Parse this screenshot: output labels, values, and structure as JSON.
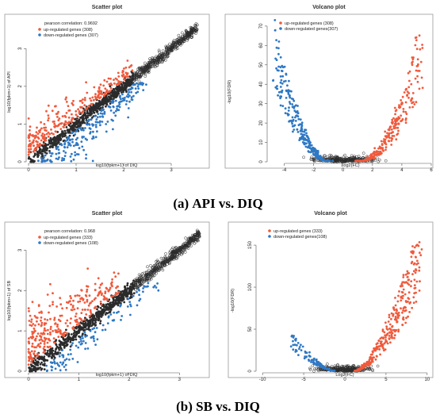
{
  "captions": {
    "a_letter": "(a)",
    "a_text": "API vs. DIQ",
    "b_letter": "(b)",
    "b_text": "SB vs. DIQ"
  },
  "colors": {
    "up": "#f05a3c",
    "down": "#2f78c4",
    "neutral": "#2b2b2b"
  },
  "chart_data": [
    {
      "type": "scatter",
      "panel": "a-left",
      "title": "Scatter plot",
      "xlabel": "log10(fpkm+1) of DIQ",
      "ylabel": "log10(fpkm+1) of API",
      "xlim": [
        0,
        3.7
      ],
      "ylim": [
        0,
        3.7
      ],
      "xticks": [
        0,
        1,
        2,
        3
      ],
      "yticks": [
        0,
        1,
        2,
        3
      ],
      "annotation": "pearson correlation: 0.9692",
      "series": [
        {
          "name": "up-regulated genes (308)",
          "color": "#f05a3c",
          "count": 308
        },
        {
          "name": "down-regulated genes (307)",
          "color": "#2f78c4",
          "count": 307
        },
        {
          "color": "#2b2b2b"
        }
      ]
    },
    {
      "type": "scatter",
      "panel": "a-right",
      "title": "Volcano plot",
      "xlabel": "Log2(FC)",
      "ylabel": "-log10(FDR)",
      "xlim": [
        -5,
        6
      ],
      "ylim": [
        0,
        72
      ],
      "xticks": [
        -4,
        -2,
        0,
        2,
        4,
        6
      ],
      "yticks": [
        0,
        10,
        20,
        30,
        40,
        50,
        60,
        70
      ],
      "series": [
        {
          "name": "up-regulated genes (308)",
          "color": "#f05a3c",
          "count": 308
        },
        {
          "name": "down-regulated genes(307)",
          "color": "#2f78c4",
          "count": 307
        },
        {
          "color": "#2b2b2b"
        }
      ]
    },
    {
      "type": "scatter",
      "panel": "b-left",
      "title": "Scatter plot",
      "xlabel": "log10(fpkm+1) of DIQ",
      "ylabel": "log10(fpkm+1) of SB",
      "xlim": [
        0,
        3.5
      ],
      "ylim": [
        0,
        3.5
      ],
      "xticks": [
        0,
        1,
        2,
        3
      ],
      "yticks": [
        0,
        1,
        2,
        3
      ],
      "annotation": "pearson correlation: 0.968",
      "series": [
        {
          "name": "up-regulated genes (333)",
          "color": "#f05a3c",
          "count": 333
        },
        {
          "name": "down-regulated genes (108)",
          "color": "#2f78c4",
          "count": 108
        },
        {
          "color": "#2b2b2b"
        }
      ]
    },
    {
      "type": "scatter",
      "panel": "b-right",
      "title": "Volcano plot",
      "xlabel": "Log2(FC)",
      "ylabel": "-log10(FDR)",
      "xlim": [
        -10.5,
        10.5
      ],
      "ylim": [
        0,
        168
      ],
      "xticks": [
        -10,
        -5,
        0,
        5,
        10
      ],
      "yticks": [
        0,
        50,
        100,
        150
      ],
      "series": [
        {
          "name": "up-regulated genes (333)",
          "color": "#f05a3c",
          "count": 333
        },
        {
          "name": "down-regulated genes(108)",
          "color": "#2f78c4",
          "count": 108
        },
        {
          "color": "#2b2b2b"
        }
      ]
    }
  ]
}
